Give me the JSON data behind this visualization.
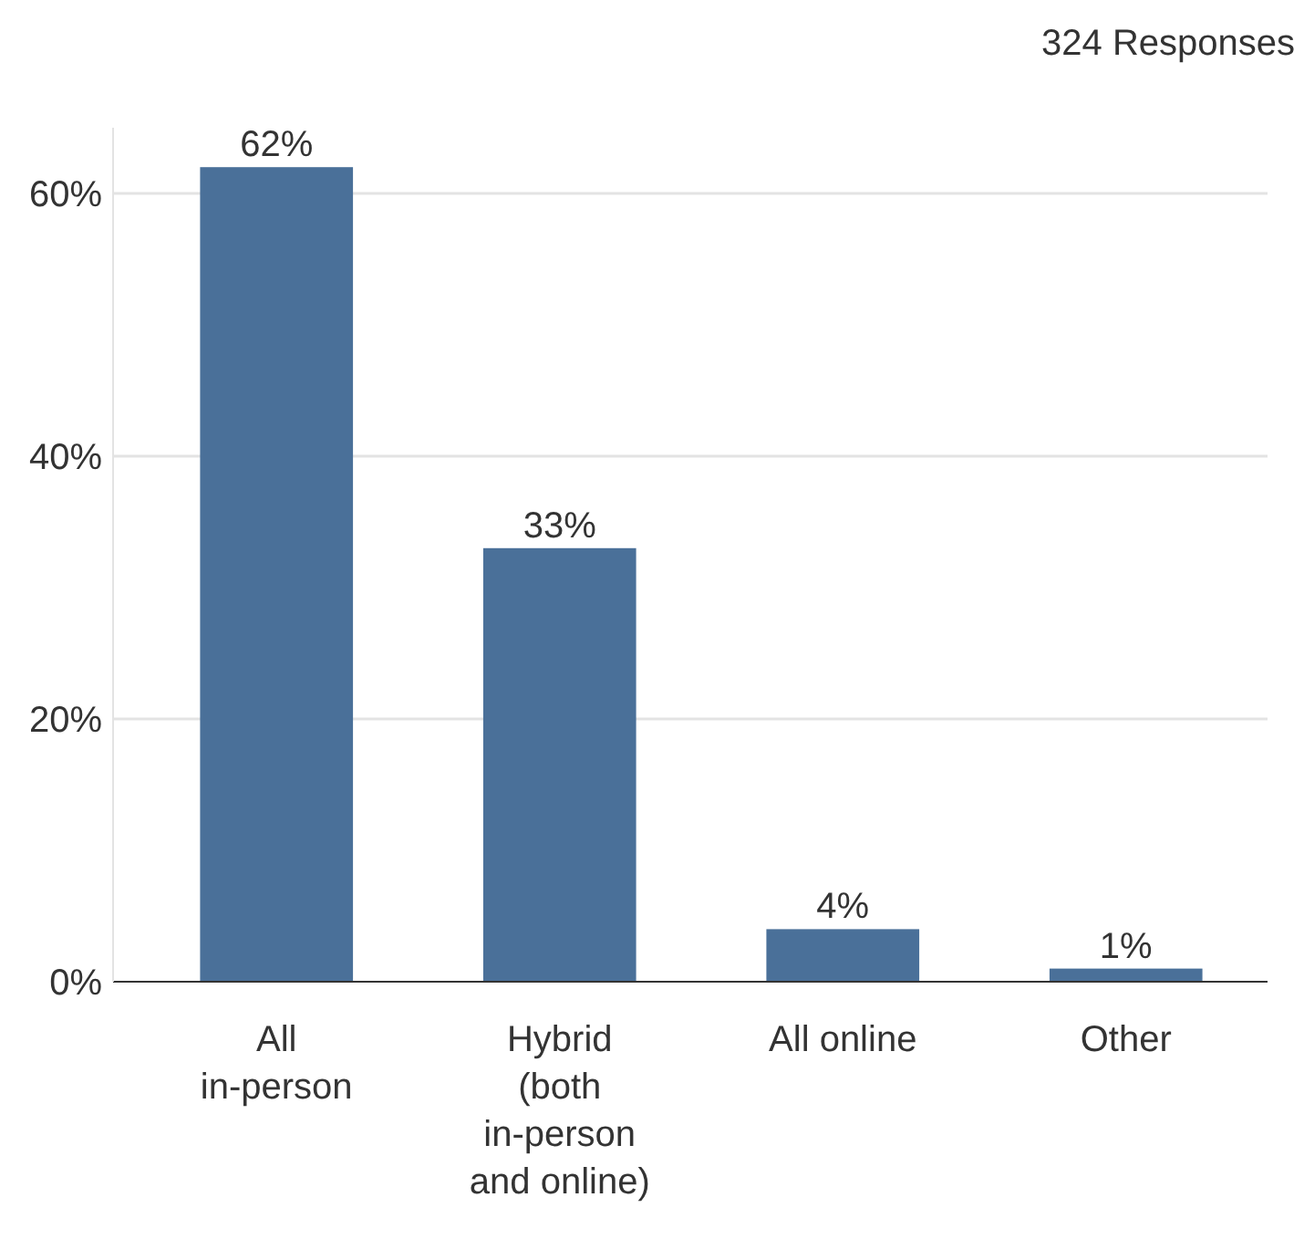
{
  "chart_data": {
    "type": "bar",
    "categories": [
      "All in-person",
      "Hybrid (both in-person and online)",
      "All online",
      "Other"
    ],
    "values": [
      62,
      33,
      4,
      1
    ],
    "value_labels": [
      "62%",
      "33%",
      "4%",
      "1%"
    ],
    "color": "#4a7099",
    "ylim": [
      0,
      65
    ],
    "yticks": [
      {
        "value": 0,
        "label": "0%"
      },
      {
        "value": 20,
        "label": "20%"
      },
      {
        "value": 40,
        "label": "40%"
      },
      {
        "value": 60,
        "label": "60%"
      }
    ],
    "grid": "y",
    "annotations": [
      "324 Responses"
    ]
  }
}
